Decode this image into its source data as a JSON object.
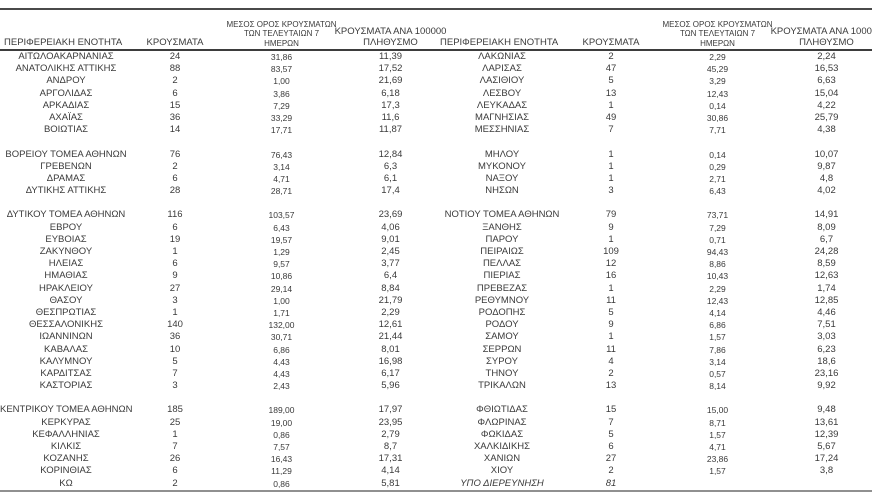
{
  "headers": {
    "region": "ΠΕΡΙΦΕΡΕΙΑΚΗ ΕΝΟΤΗΤΑ",
    "cases": "ΚΡΟΥΣΜΑΤΑ",
    "avg7_lines": [
      "ΜΕΣΟΣ ΟΡΟΣ ΚΡΟΥΣΜΑΤΩΝ",
      "ΤΩΝ ΤΕΛΕΥΤΑΙΩΝ 7",
      "ΗΜΕΡΩΝ"
    ],
    "per100k_lines": [
      "ΚΡΟΥΣΜΑΤΑ ΑΝΑ 100000",
      "ΠΛΗΘΥΣΜΟ"
    ]
  },
  "colors": {
    "text": "#3a3a3a",
    "rule_dark": "#3d3d3d",
    "rule_bottom": "#909090",
    "background": "#ffffff"
  },
  "left_rows": [
    {
      "name": "ΑΙΤΩΛΟΑΚΑΡΝΑΝΙΑΣ",
      "cases": "24",
      "avg7": "31,86",
      "per100k": "11,39"
    },
    {
      "name": "ΑΝΑΤΟΛΙΚΗΣ ΑΤΤΙΚΗΣ",
      "cases": "88",
      "avg7": "83,57",
      "per100k": "17,52"
    },
    {
      "name": "ΑΝΔΡΟΥ",
      "cases": "2",
      "avg7": "1,00",
      "per100k": "21,69"
    },
    {
      "name": "ΑΡΓΟΛΙΔΑΣ",
      "cases": "6",
      "avg7": "3,86",
      "per100k": "6,18"
    },
    {
      "name": "ΑΡΚΑΔΙΑΣ",
      "cases": "15",
      "avg7": "7,29",
      "per100k": "17,3"
    },
    {
      "name": "ΑΧΑΪΑΣ",
      "cases": "36",
      "avg7": "33,29",
      "per100k": "11,6"
    },
    {
      "name": "ΒΟΙΩΤΙΑΣ",
      "cases": "14",
      "avg7": "17,71",
      "per100k": "11,87"
    },
    {
      "blank": true
    },
    {
      "name": "ΒΟΡΕΙΟΥ ΤΟΜΕΑ ΑΘΗΝΩΝ",
      "cases": "76",
      "avg7": "76,43",
      "per100k": "12,84"
    },
    {
      "name": "ΓΡΕΒΕΝΩΝ",
      "cases": "2",
      "avg7": "3,14",
      "per100k": "6,3"
    },
    {
      "name": "ΔΡΑΜΑΣ",
      "cases": "6",
      "avg7": "4,71",
      "per100k": "6,1"
    },
    {
      "name": "ΔΥΤΙΚΗΣ ΑΤΤΙΚΗΣ",
      "cases": "28",
      "avg7": "28,71",
      "per100k": "17,4"
    },
    {
      "blank": true
    },
    {
      "name": "ΔΥΤΙΚΟΥ ΤΟΜΕΑ ΑΘΗΝΩΝ",
      "cases": "116",
      "avg7": "103,57",
      "per100k": "23,69"
    },
    {
      "name": "ΕΒΡΟΥ",
      "cases": "6",
      "avg7": "6,43",
      "per100k": "4,06"
    },
    {
      "name": "ΕΥΒΟΙΑΣ",
      "cases": "19",
      "avg7": "19,57",
      "per100k": "9,01"
    },
    {
      "name": "ΖΑΚΥΝΘΟΥ",
      "cases": "1",
      "avg7": "1,29",
      "per100k": "2,45"
    },
    {
      "name": "ΗΛΕΙΑΣ",
      "cases": "6",
      "avg7": "9,57",
      "per100k": "3,77"
    },
    {
      "name": "ΗΜΑΘΙΑΣ",
      "cases": "9",
      "avg7": "10,86",
      "per100k": "6,4"
    },
    {
      "name": "ΗΡΑΚΛΕΙΟΥ",
      "cases": "27",
      "avg7": "29,14",
      "per100k": "8,84"
    },
    {
      "name": "ΘΑΣΟΥ",
      "cases": "3",
      "avg7": "1,00",
      "per100k": "21,79"
    },
    {
      "name": "ΘΕΣΠΡΩΤΙΑΣ",
      "cases": "1",
      "avg7": "1,71",
      "per100k": "2,29"
    },
    {
      "name": "ΘΕΣΣΑΛΟΝΙΚΗΣ",
      "cases": "140",
      "avg7": "132,00",
      "per100k": "12,61"
    },
    {
      "name": "ΙΩΑΝΝΙΝΩΝ",
      "cases": "36",
      "avg7": "30,71",
      "per100k": "21,44"
    },
    {
      "name": "ΚΑΒΑΛΑΣ",
      "cases": "10",
      "avg7": "6,86",
      "per100k": "8,01"
    },
    {
      "name": "ΚΑΛΥΜΝΟΥ",
      "cases": "5",
      "avg7": "4,43",
      "per100k": "16,98"
    },
    {
      "name": "ΚΑΡΔΙΤΣΑΣ",
      "cases": "7",
      "avg7": "4,43",
      "per100k": "6,17"
    },
    {
      "name": "ΚΑΣΤΟΡΙΑΣ",
      "cases": "3",
      "avg7": "2,43",
      "per100k": "5,96"
    },
    {
      "blank": true
    },
    {
      "name": "ΚΕΝΤΡΙΚΟΥ ΤΟΜΕΑ ΑΘΗΝΩΝ",
      "cases": "185",
      "avg7": "189,00",
      "per100k": "17,97"
    },
    {
      "name": "ΚΕΡΚΥΡΑΣ",
      "cases": "25",
      "avg7": "19,00",
      "per100k": "23,95"
    },
    {
      "name": "ΚΕΦΑΛΛΗΝΙΑΣ",
      "cases": "1",
      "avg7": "0,86",
      "per100k": "2,79"
    },
    {
      "name": "ΚΙΛΚΙΣ",
      "cases": "7",
      "avg7": "7,57",
      "per100k": "8,7"
    },
    {
      "name": "ΚΟΖΑΝΗΣ",
      "cases": "26",
      "avg7": "16,43",
      "per100k": "17,31"
    },
    {
      "name": "ΚΟΡΙΝΘΙΑΣ",
      "cases": "6",
      "avg7": "11,29",
      "per100k": "4,14"
    },
    {
      "name": "ΚΩ",
      "cases": "2",
      "avg7": "0,86",
      "per100k": "5,81"
    }
  ],
  "right_rows": [
    {
      "name": "ΛΑΚΩΝΙΑΣ",
      "cases": "2",
      "avg7": "2,29",
      "per100k": "2,24"
    },
    {
      "name": "ΛΑΡΙΣΑΣ",
      "cases": "47",
      "avg7": "45,29",
      "per100k": "16,53"
    },
    {
      "name": "ΛΑΣΙΘΙΟΥ",
      "cases": "5",
      "avg7": "3,29",
      "per100k": "6,63"
    },
    {
      "name": "ΛΕΣΒΟΥ",
      "cases": "13",
      "avg7": "12,43",
      "per100k": "15,04"
    },
    {
      "name": "ΛΕΥΚΑΔΑΣ",
      "cases": "1",
      "avg7": "0,14",
      "per100k": "4,22"
    },
    {
      "name": "ΜΑΓΝΗΣΙΑΣ",
      "cases": "49",
      "avg7": "30,86",
      "per100k": "25,79"
    },
    {
      "name": "ΜΕΣΣΗΝΙΑΣ",
      "cases": "7",
      "avg7": "7,71",
      "per100k": "4,38"
    },
    {
      "blank": true
    },
    {
      "name": "ΜΗΛΟΥ",
      "cases": "1",
      "avg7": "0,14",
      "per100k": "10,07"
    },
    {
      "name": "ΜΥΚΟΝΟΥ",
      "cases": "1",
      "avg7": "0,29",
      "per100k": "9,87"
    },
    {
      "name": "ΝΑΞΟΥ",
      "cases": "1",
      "avg7": "2,71",
      "per100k": "4,8"
    },
    {
      "name": "ΝΗΣΩΝ",
      "cases": "3",
      "avg7": "6,43",
      "per100k": "4,02"
    },
    {
      "blank": true
    },
    {
      "name": "ΝΟΤΙΟΥ ΤΟΜΕΑ ΑΘΗΝΩΝ",
      "cases": "79",
      "avg7": "73,71",
      "per100k": "14,91"
    },
    {
      "name": "ΞΑΝΘΗΣ",
      "cases": "9",
      "avg7": "7,29",
      "per100k": "8,09"
    },
    {
      "name": "ΠΑΡΟΥ",
      "cases": "1",
      "avg7": "0,71",
      "per100k": "6,7"
    },
    {
      "name": "ΠΕΙΡΑΙΩΣ",
      "cases": "109",
      "avg7": "94,43",
      "per100k": "24,28"
    },
    {
      "name": "ΠΕΛΛΑΣ",
      "cases": "12",
      "avg7": "8,86",
      "per100k": "8,59"
    },
    {
      "name": "ΠΙΕΡΙΑΣ",
      "cases": "16",
      "avg7": "10,43",
      "per100k": "12,63"
    },
    {
      "name": "ΠΡΕΒΕΖΑΣ",
      "cases": "1",
      "avg7": "2,29",
      "per100k": "1,74"
    },
    {
      "name": "ΡΕΘΥΜΝΟΥ",
      "cases": "11",
      "avg7": "12,43",
      "per100k": "12,85"
    },
    {
      "name": "ΡΟΔΟΠΗΣ",
      "cases": "5",
      "avg7": "4,14",
      "per100k": "4,46"
    },
    {
      "name": "ΡΟΔΟΥ",
      "cases": "9",
      "avg7": "6,86",
      "per100k": "7,51"
    },
    {
      "name": "ΣΑΜΟΥ",
      "cases": "1",
      "avg7": "1,57",
      "per100k": "3,03"
    },
    {
      "name": "ΣΕΡΡΩΝ",
      "cases": "11",
      "avg7": "7,86",
      "per100k": "6,23"
    },
    {
      "name": "ΣΥΡΟΥ",
      "cases": "4",
      "avg7": "3,14",
      "per100k": "18,6"
    },
    {
      "name": "ΤΗΝΟΥ",
      "cases": "2",
      "avg7": "0,57",
      "per100k": "23,16"
    },
    {
      "name": "ΤΡΙΚΑΛΩΝ",
      "cases": "13",
      "avg7": "8,14",
      "per100k": "9,92"
    },
    {
      "blank": true
    },
    {
      "name": "ΦΘΙΩΤΙΔΑΣ",
      "cases": "15",
      "avg7": "15,00",
      "per100k": "9,48"
    },
    {
      "name": "ΦΛΩΡΙΝΑΣ",
      "cases": "7",
      "avg7": "8,71",
      "per100k": "13,61"
    },
    {
      "name": "ΦΩΚΙΔΑΣ",
      "cases": "5",
      "avg7": "1,57",
      "per100k": "12,39"
    },
    {
      "name": "ΧΑΛΚΙΔΙΚΗΣ",
      "cases": "6",
      "avg7": "4,71",
      "per100k": "5,67"
    },
    {
      "name": "ΧΑΝΙΩΝ",
      "cases": "27",
      "avg7": "23,86",
      "per100k": "17,24"
    },
    {
      "name": "ΧΙΟΥ",
      "cases": "2",
      "avg7": "1,57",
      "per100k": "3,8"
    },
    {
      "name": "ΥΠΟ ΔΙΕΡΕΥΝΗΣΗ",
      "cases": "81",
      "avg7": "",
      "per100k": "",
      "italic": true
    }
  ]
}
